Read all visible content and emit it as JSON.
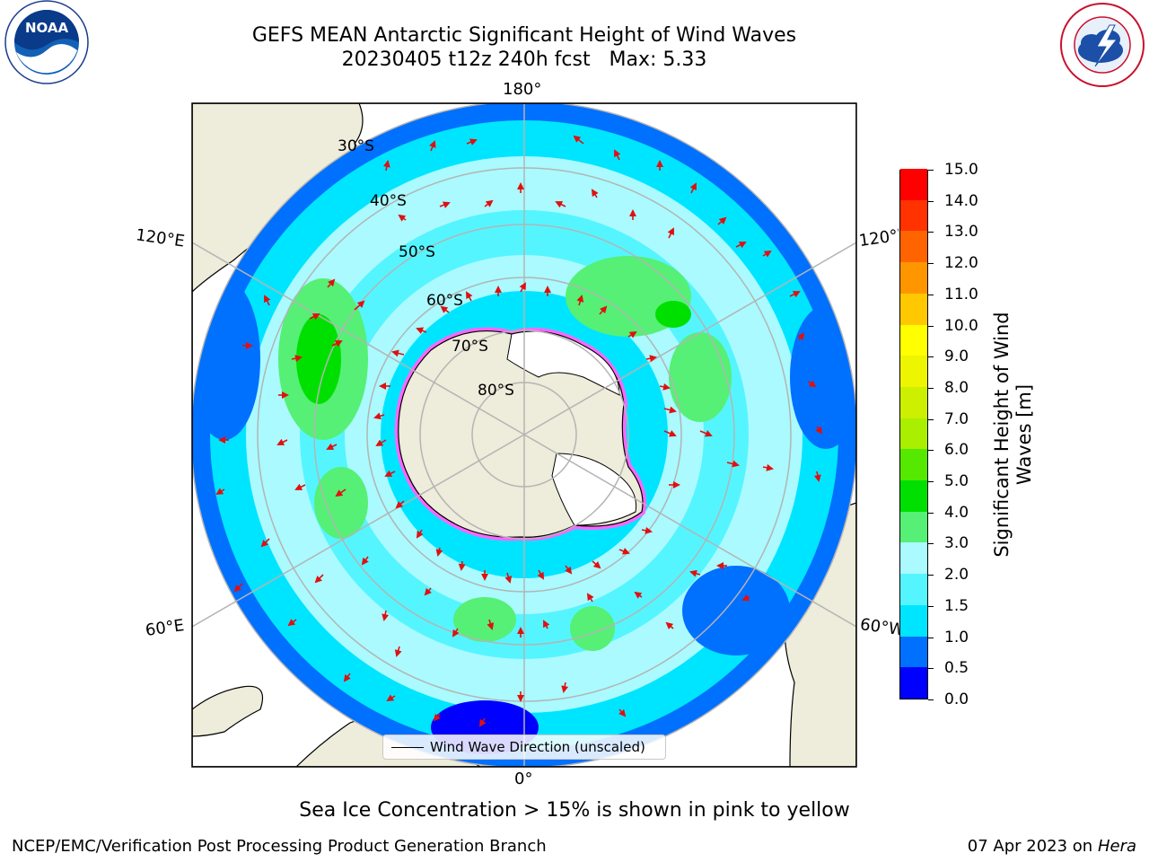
{
  "title": {
    "line1": "GEFS MEAN Antarctic Significant Height of Wind Waves",
    "line2": "20230405 t12z 240h fcst   Max: 5.33"
  },
  "logos": {
    "left": {
      "name": "noaa-logo",
      "text": "NOAA",
      "ring_text": "NATIONAL OCEANIC AND ATMOSPHERIC ADMINISTRATION • U.S. DEPARTMENT OF COMMERCE"
    },
    "right": {
      "name": "nws-logo",
      "ring_text": "NATIONAL WEATHER SERVICE"
    }
  },
  "map": {
    "projection": "south-polar-stereographic",
    "longitude_labels": {
      "top": "180°",
      "bottom": "0°",
      "upper_left": "120°E",
      "upper_right": "120°W",
      "lower_left": "60°E",
      "lower_right": "60°W"
    },
    "latitude_labels": [
      "30°S",
      "40°S",
      "50°S",
      "60°S",
      "70°S",
      "80°S"
    ],
    "colors": {
      "land": "#eeecda",
      "ocean_background": "#ffffff",
      "grid": "#b4b4b4",
      "arrow": "#e01010",
      "ice_edge": [
        "#ff66ff",
        "#ffd700"
      ]
    },
    "legend": {
      "label": "Wind Wave Direction (unscaled)"
    }
  },
  "colorbar": {
    "title": "Significant Height of Wind Waves [m]",
    "title_line1": "Significant Height of Wind",
    "title_line2": "Waves [m]",
    "ticks": [
      "0.0",
      "0.5",
      "1.0",
      "1.5",
      "2.0",
      "3.0",
      "4.0",
      "5.0",
      "6.0",
      "7.0",
      "8.0",
      "9.0",
      "10.0",
      "11.0",
      "12.0",
      "13.0",
      "14.0",
      "15.0"
    ],
    "colors": [
      "#0000ff",
      "#0070ff",
      "#00e5ff",
      "#55f5ff",
      "#aafaff",
      "#55f075",
      "#00e000",
      "#55e800",
      "#aaee00",
      "#ccf000",
      "#eef500",
      "#ffff00",
      "#ffc800",
      "#ff9600",
      "#ff6400",
      "#ff3200",
      "#ff0000"
    ]
  },
  "footnote": "Sea Ice Concentration > 15% is shown in pink to yellow",
  "credits": {
    "left": "NCEP/EMC/Verification Post Processing Product Generation Branch",
    "right_date": "07 Apr 2023 on ",
    "right_host": "Hera"
  }
}
